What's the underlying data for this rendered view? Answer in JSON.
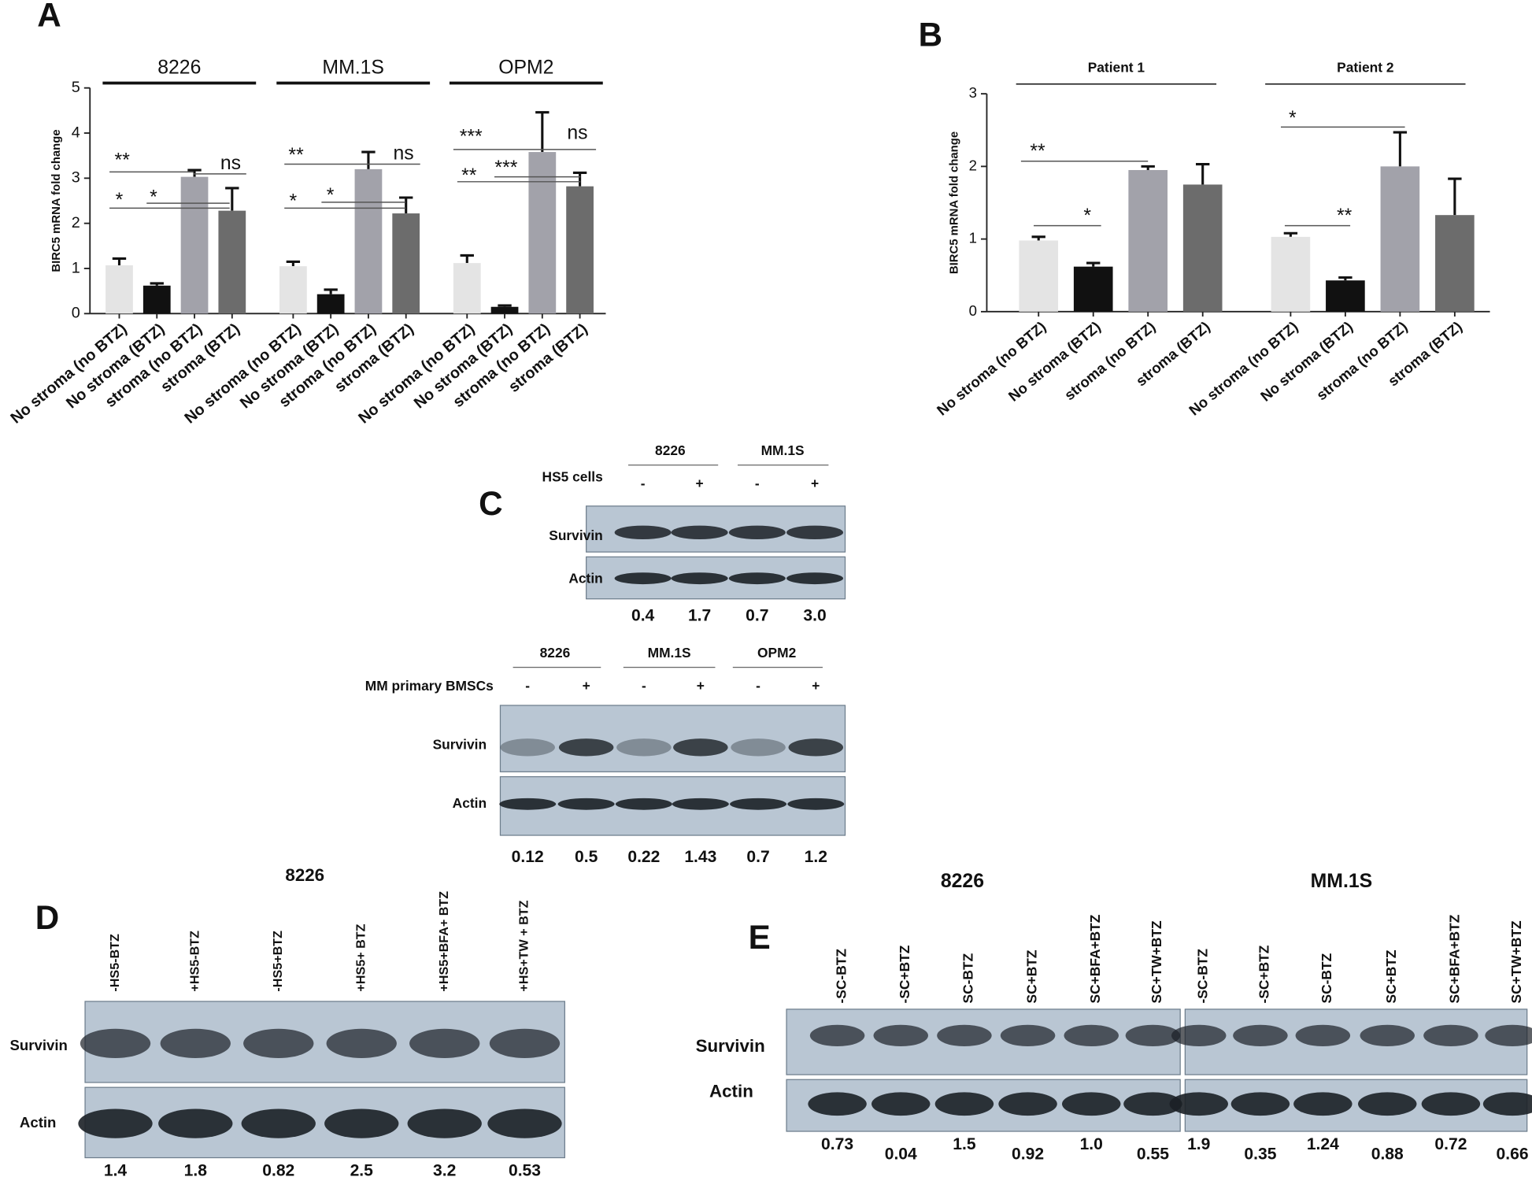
{
  "panels": [
    "A",
    "B",
    "C",
    "D",
    "E"
  ],
  "chart_data": [
    {
      "type": "bar",
      "y_label": "BIRC5 mRNA fold change",
      "groups": [
        "8226",
        "MM.1S",
        "OPM2"
      ],
      "categories": [
        "No stroma (no BTZ)",
        "No stroma (BTZ)",
        "stroma (no BTZ)",
        "stroma (BTZ)",
        "No stroma (no BTZ)",
        "No stroma (BTZ)",
        "stroma (no BTZ)",
        "stroma (BTZ)",
        "No stroma (no BTZ)",
        "No stroma (BTZ)",
        "stroma (no BTZ)",
        "stroma (BTZ)"
      ],
      "values": [
        1.07,
        0.62,
        3.03,
        2.28,
        1.05,
        0.43,
        3.2,
        2.22,
        1.12,
        0.15,
        3.58,
        2.82
      ],
      "errors": [
        0.15,
        0.05,
        0.15,
        0.5,
        0.1,
        0.1,
        0.38,
        0.35,
        0.17,
        0.03,
        0.88,
        0.3
      ],
      "colors": [
        "#e4e4e4",
        "#111111",
        "#a2a2aa",
        "#6c6c6c",
        "#e4e4e4",
        "#111111",
        "#a2a2aa",
        "#6c6c6c",
        "#e4e4e4",
        "#111111",
        "#a2a2aa",
        "#6c6c6c"
      ],
      "ylim": [
        0,
        5
      ],
      "yticks": [
        0,
        1,
        2,
        3,
        4,
        5
      ],
      "annotations": [
        "**",
        "*",
        "*",
        "ns",
        "**",
        "*",
        "*",
        "ns",
        "***",
        "**",
        "***",
        "ns"
      ]
    },
    {
      "type": "bar",
      "y_label": "BIRC5 mRNA fold change",
      "groups": [
        "Patient 1",
        "Patient 2"
      ],
      "categories": [
        "No stroma (no BTZ)",
        "No stroma (BTZ)",
        "stroma (no BTZ)",
        "stroma (BTZ)",
        "No stroma (no BTZ)",
        "No stroma (BTZ)",
        "stroma (no BTZ)",
        "stroma (BTZ)"
      ],
      "values": [
        0.98,
        0.62,
        1.95,
        1.75,
        1.03,
        0.43,
        2.0,
        1.33
      ],
      "errors": [
        0.05,
        0.05,
        0.05,
        0.28,
        0.05,
        0.04,
        0.47,
        0.5
      ],
      "colors": [
        "#e4e4e4",
        "#111111",
        "#a2a2aa",
        "#6c6c6c",
        "#e4e4e4",
        "#111111",
        "#a2a2aa",
        "#6c6c6c"
      ],
      "ylim": [
        0,
        3
      ],
      "yticks": [
        0,
        1,
        2,
        3
      ],
      "annotations": [
        "**",
        "*",
        "*",
        "**"
      ]
    }
  ],
  "blots": [
    {
      "groups": [
        "8226",
        "MM.1S"
      ],
      "condition": "HS5 cells",
      "signs": [
        "-",
        "+",
        "-",
        "+"
      ],
      "rows": [
        "Survivin",
        "Actin"
      ],
      "quant": [
        "0.4",
        "1.7",
        "0.7",
        "3.0"
      ]
    },
    {
      "groups": [
        "8226",
        "MM.1S",
        "OPM2"
      ],
      "condition": "MM primary BMSCs",
      "signs": [
        "-",
        "+",
        "-",
        "+",
        "-",
        "+"
      ],
      "rows": [
        "Survivin",
        "Actin"
      ],
      "quant": [
        "0.12",
        "0.5",
        "0.22",
        "1.43",
        "0.7",
        "1.2"
      ]
    },
    {
      "groups": [
        "8226"
      ],
      "lanes": [
        "-HS5-BTZ",
        "+HS5-BTZ",
        "-HS5+BTZ",
        "+HS5+ BTZ",
        "+HS5+BFA+ BTZ",
        "+HS+TW + BTZ"
      ],
      "rows": [
        "Survivin",
        "Actin"
      ],
      "quant": [
        "1.4",
        "1.8",
        "0.82",
        "2.5",
        "3.2",
        "0.53"
      ]
    },
    {
      "groups": [
        "8226",
        "MM.1S"
      ],
      "lanes": [
        "-SC-BTZ",
        "-SC+BTZ",
        "SC-BTZ",
        "SC+BTZ",
        "SC+BFA+BTZ",
        "SC+TW+BTZ",
        "-SC-BTZ",
        "-SC+BTZ",
        "SC-BTZ",
        "SC+BTZ",
        "SC+BFA+BTZ",
        "SC+TW+BTZ"
      ],
      "rows": [
        "Survivin",
        "Actin"
      ],
      "quant": [
        "0.73",
        "0.04",
        "1.5",
        "0.92",
        "1.0",
        "0.55",
        "1.9",
        "0.35",
        "1.24",
        "0.88",
        "0.72",
        "0.66"
      ]
    }
  ]
}
